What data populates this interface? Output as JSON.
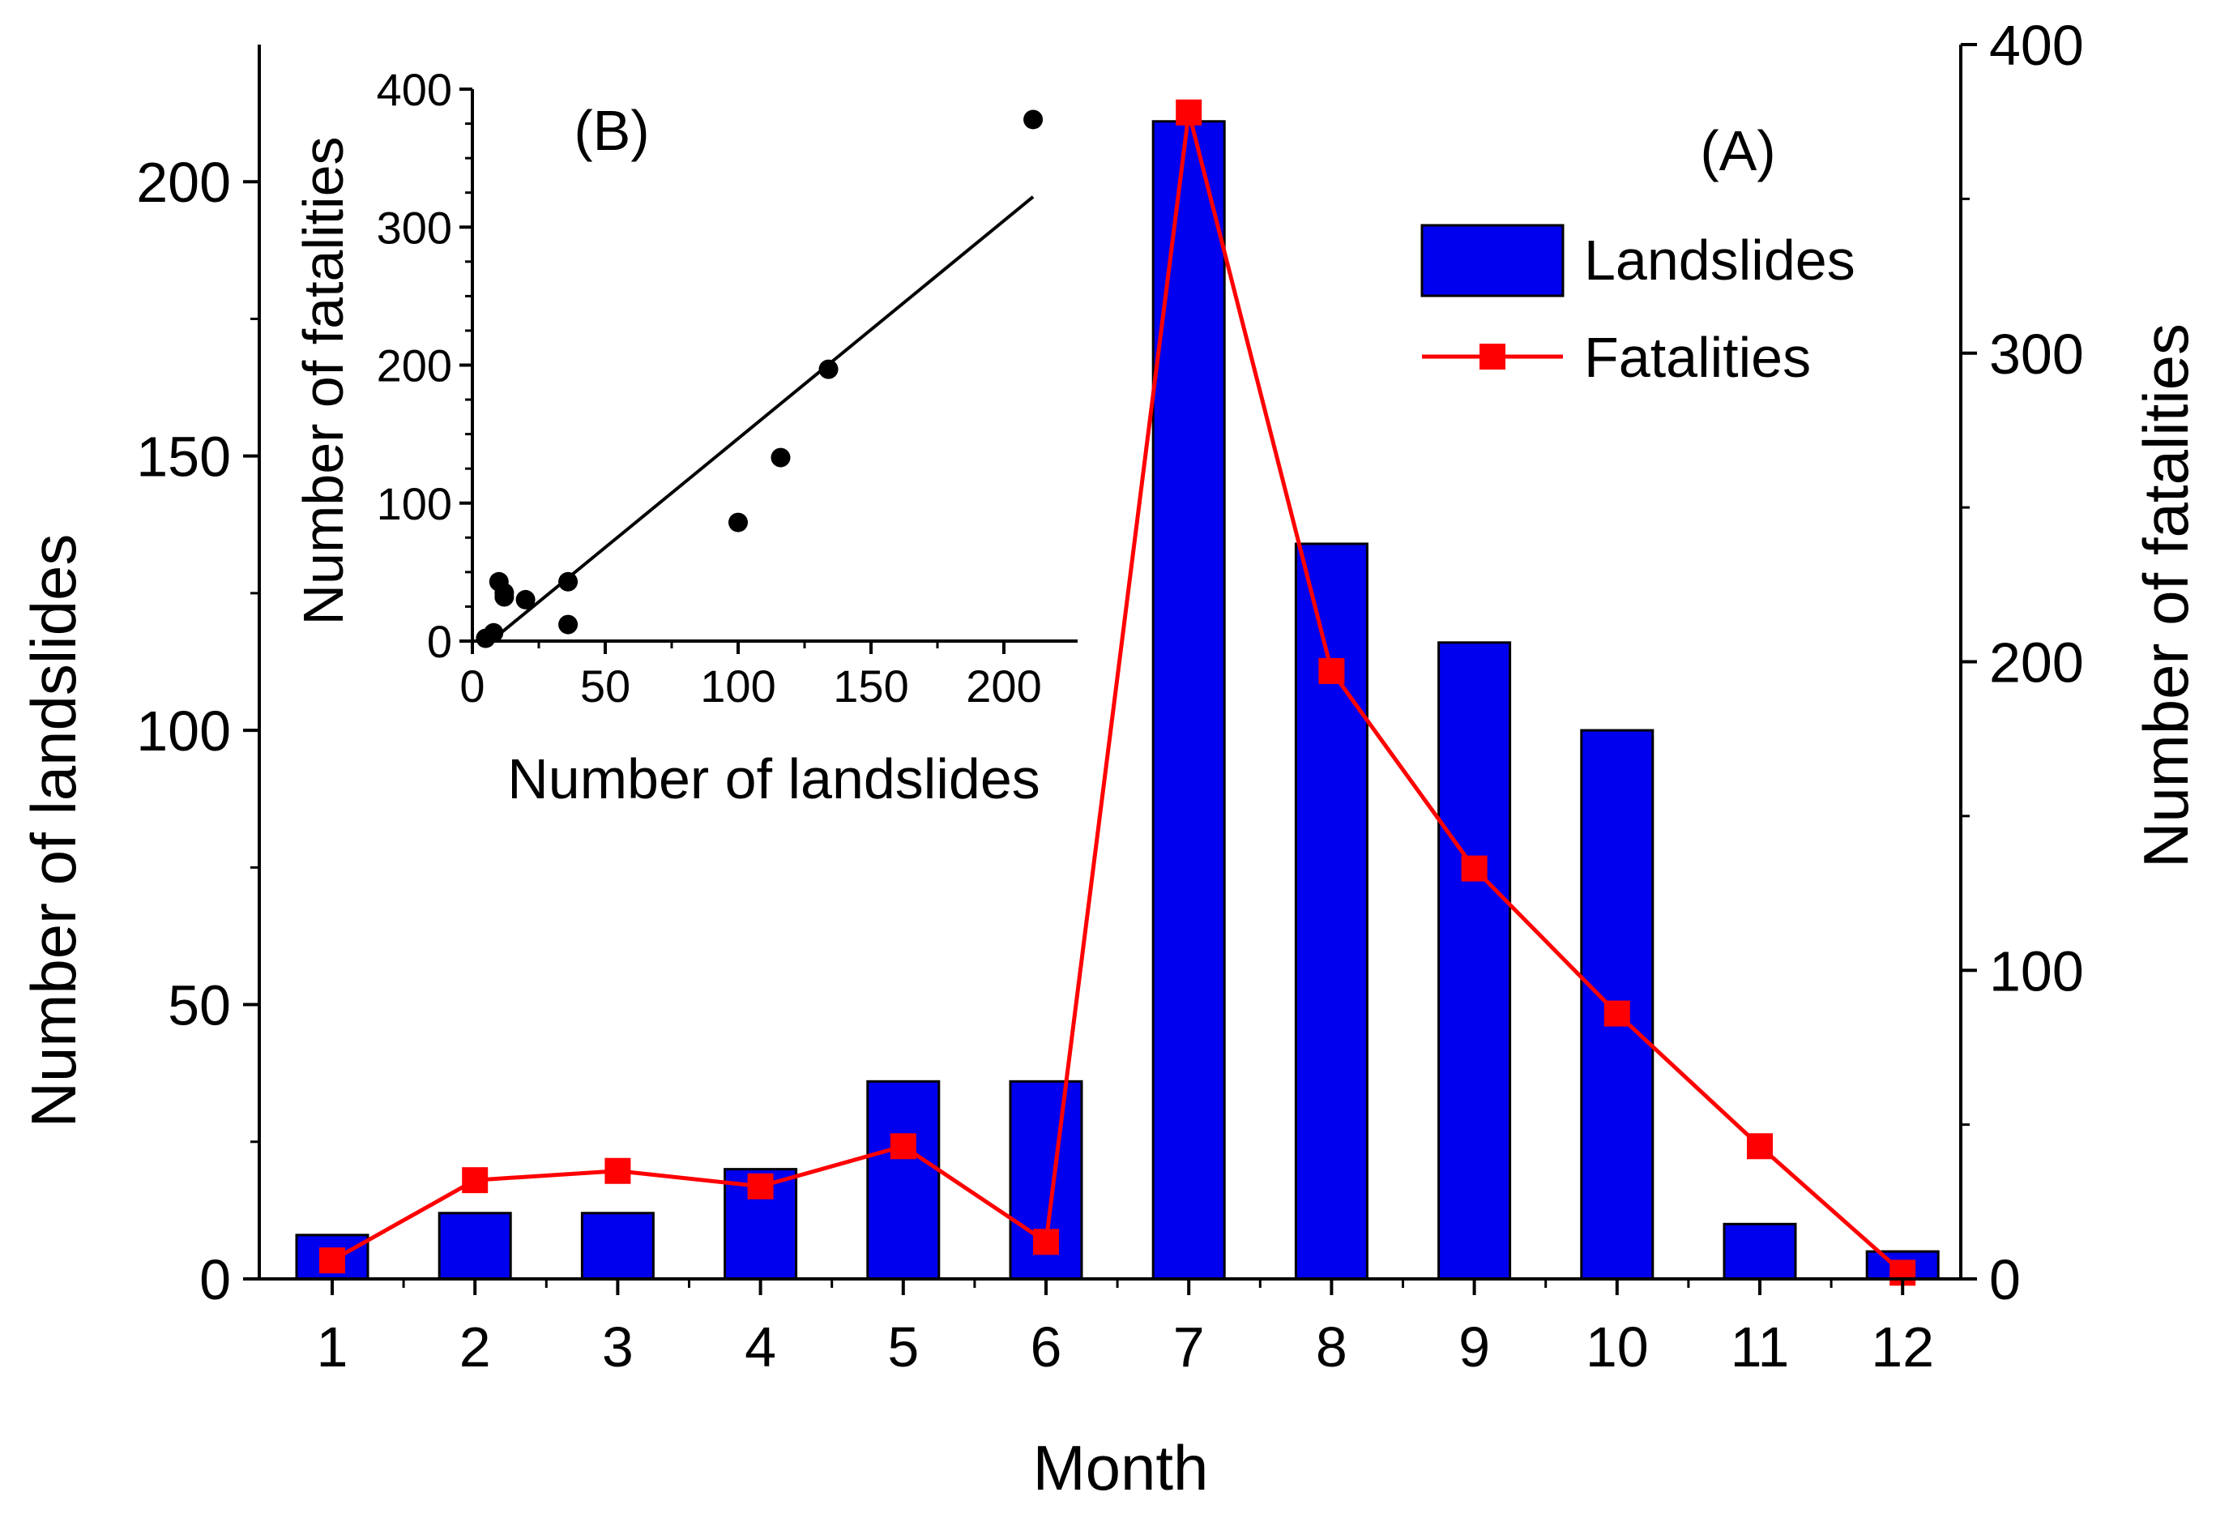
{
  "colors": {
    "bar_fill": "#0000ee",
    "bar_stroke": "#000000",
    "line": "#ff0000",
    "axis": "#000000",
    "scatter": "#000000"
  },
  "chart_data": [
    {
      "id": "A",
      "panel_label": "(A)",
      "type": "bar+line",
      "xlabel": "Month",
      "ylabel_left": "Number of landslides",
      "ylabel_right": "Number of fatalities",
      "categories": [
        "1",
        "2",
        "3",
        "4",
        "5",
        "6",
        "7",
        "8",
        "9",
        "10",
        "11",
        "12"
      ],
      "xtick_labels": [
        "1",
        "2",
        "3",
        "4",
        "5",
        "6",
        "7",
        "8",
        "9",
        "10",
        "11",
        "12"
      ],
      "ylim_left": [
        0,
        225
      ],
      "yticks_left": [
        0,
        50,
        100,
        150,
        200
      ],
      "ytick_labels_left": [
        "0",
        "50",
        "100",
        "150",
        "200"
      ],
      "ylim_right": [
        0,
        400
      ],
      "yticks_right": [
        0,
        100,
        200,
        300,
        400
      ],
      "ytick_labels_right": [
        "0",
        "100",
        "200",
        "300",
        "400"
      ],
      "series": [
        {
          "name": "Landslides",
          "type": "bar",
          "axis": "left",
          "values": [
            8,
            12,
            12,
            20,
            36,
            36,
            211,
            134,
            116,
            100,
            10,
            5
          ]
        },
        {
          "name": "Fatalities",
          "type": "line",
          "axis": "right",
          "marker": "square",
          "values": [
            6,
            32,
            35,
            30,
            43,
            12,
            378,
            197,
            133,
            86,
            43,
            2
          ]
        }
      ],
      "legend": {
        "placement": "top-right",
        "entries": [
          "Landslides",
          "Fatalities"
        ]
      }
    },
    {
      "id": "B",
      "panel_label": "(B)",
      "type": "scatter",
      "placement": "inset top-left",
      "xlabel": "Number of landslides",
      "ylabel": "Number of fatalities",
      "xlim": [
        0,
        225
      ],
      "xticks": [
        0,
        50,
        100,
        150,
        200
      ],
      "xtick_labels": [
        "0",
        "50",
        "100",
        "150",
        "200"
      ],
      "ylim": [
        0,
        400
      ],
      "yticks": [
        0,
        100,
        200,
        300,
        400
      ],
      "ytick_labels": [
        "0",
        "100",
        "200",
        "300",
        "400"
      ],
      "points": [
        {
          "x": 5,
          "y": 2
        },
        {
          "x": 8,
          "y": 6
        },
        {
          "x": 10,
          "y": 43
        },
        {
          "x": 12,
          "y": 32
        },
        {
          "x": 12,
          "y": 35
        },
        {
          "x": 20,
          "y": 30
        },
        {
          "x": 36,
          "y": 43
        },
        {
          "x": 36,
          "y": 12
        },
        {
          "x": 100,
          "y": 86
        },
        {
          "x": 116,
          "y": 133
        },
        {
          "x": 134,
          "y": 197
        },
        {
          "x": 211,
          "y": 378
        }
      ],
      "fit_line": {
        "x": [
          7,
          211
        ],
        "y": [
          0,
          322
        ]
      }
    }
  ]
}
